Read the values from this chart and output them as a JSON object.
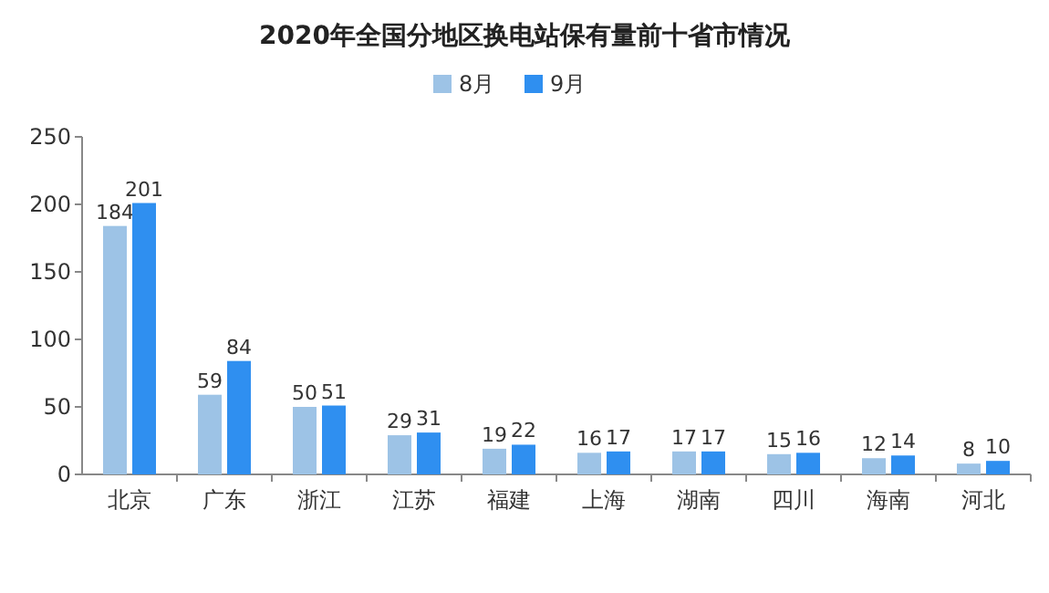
{
  "chart_data": {
    "type": "bar",
    "title": "2020年全国分地区换电站保有量前十省市情况",
    "categories": [
      "北京",
      "广东",
      "浙江",
      "江苏",
      "福建",
      "上海",
      "湖南",
      "四川",
      "海南",
      "河北"
    ],
    "series": [
      {
        "name": "8月",
        "color": "#9dc3e6",
        "values": [
          184,
          59,
          50,
          29,
          19,
          16,
          17,
          15,
          12,
          8
        ]
      },
      {
        "name": "9月",
        "color": "#2f8ff0",
        "values": [
          201,
          84,
          51,
          31,
          22,
          17,
          17,
          16,
          14,
          10
        ]
      }
    ],
    "ylim": [
      0,
      250
    ],
    "yticks": [
      0,
      50,
      100,
      150,
      200,
      250
    ],
    "data_labels": true,
    "legend": "top",
    "grid": false
  }
}
